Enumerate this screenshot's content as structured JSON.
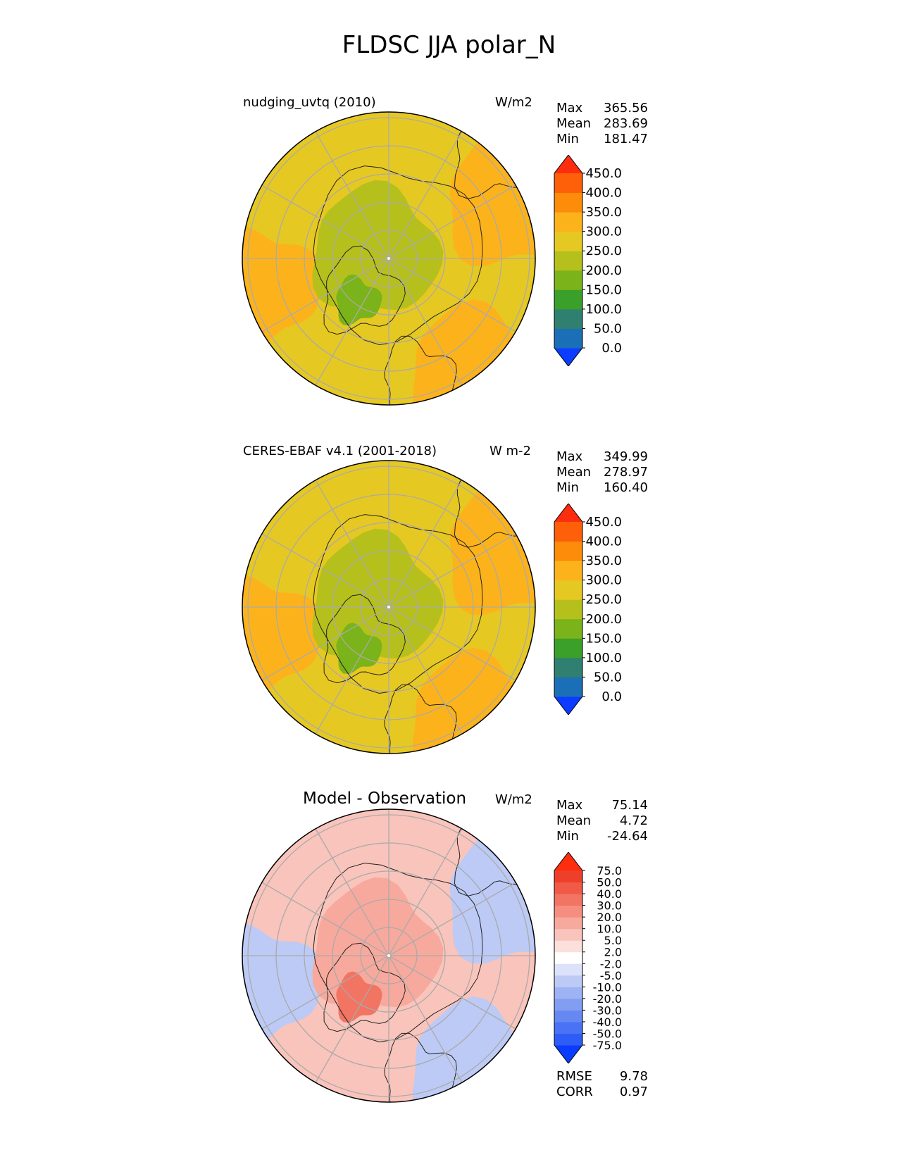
{
  "title": "FLDSC JJA polar_N",
  "panels": [
    {
      "label": "nudging_uvtq (2010)",
      "units": "W/m2",
      "stats": [
        {
          "name": "Max",
          "value": "365.56"
        },
        {
          "name": "Mean",
          "value": "283.69"
        },
        {
          "name": "Min",
          "value": "181.47"
        }
      ],
      "colorbar": {
        "levels": [
          "0.0",
          "50.0",
          "100.0",
          "150.0",
          "200.0",
          "250.0",
          "300.0",
          "350.0",
          "400.0",
          "450.0"
        ],
        "colors": [
          "#0b3cff",
          "#1a6fb6",
          "#2f8070",
          "#3aa02a",
          "#7ab31a",
          "#b5c01d",
          "#e6c823",
          "#fcb31b",
          "#fc8c0a",
          "#fd6008",
          "#fe2d0e"
        ]
      },
      "map": {
        "dominant": "#e6c823",
        "core": "#b5c01d",
        "accent": "#7ab31a",
        "warm": "#fcb31b"
      }
    },
    {
      "label": "CERES-EBAF v4.1 (2001-2018)",
      "units": "W m-2",
      "stats": [
        {
          "name": "Max",
          "value": "349.99"
        },
        {
          "name": "Mean",
          "value": "278.97"
        },
        {
          "name": "Min",
          "value": "160.40"
        }
      ],
      "colorbar": {
        "levels": [
          "0.0",
          "50.0",
          "100.0",
          "150.0",
          "200.0",
          "250.0",
          "300.0",
          "350.0",
          "400.0",
          "450.0"
        ],
        "colors": [
          "#0b3cff",
          "#1a6fb6",
          "#2f8070",
          "#3aa02a",
          "#7ab31a",
          "#b5c01d",
          "#e6c823",
          "#fcb31b",
          "#fc8c0a",
          "#fd6008",
          "#fe2d0e"
        ]
      },
      "map": {
        "dominant": "#e6c823",
        "core": "#b5c01d",
        "accent": "#7ab31a",
        "warm": "#fcb31b"
      }
    },
    {
      "label": "Model - Observation",
      "units": "W/m2",
      "stats": [
        {
          "name": "Max",
          "value": "75.14"
        },
        {
          "name": "Mean",
          "value": "4.72"
        },
        {
          "name": "Min",
          "value": "-24.64"
        }
      ],
      "colorbar": {
        "levels": [
          "-75.0",
          "-50.0",
          "-40.0",
          "-30.0",
          "-20.0",
          "-10.0",
          "-5.0",
          "-2.0",
          "2.0",
          "5.0",
          "10.0",
          "20.0",
          "30.0",
          "40.0",
          "50.0",
          "75.0"
        ],
        "colors": [
          "#0a3cff",
          "#2e5cf7",
          "#4a72f5",
          "#6688f3",
          "#829ef2",
          "#9eb3f3",
          "#bccaf5",
          "#dbe2f9",
          "#ffffff",
          "#fbe0dc",
          "#f9c4bb",
          "#f7a99d",
          "#f58e80",
          "#f27463",
          "#f05a47",
          "#ee3f2b",
          "#fe2d0e"
        ]
      },
      "map": {
        "dominant": "#f9c4bb",
        "core": "#f7a99d",
        "accent": "#f27463",
        "warm": "#bccaf5"
      },
      "metrics": [
        {
          "name": "RMSE",
          "value": "9.78"
        },
        {
          "name": "CORR",
          "value": "0.97"
        }
      ]
    }
  ]
}
